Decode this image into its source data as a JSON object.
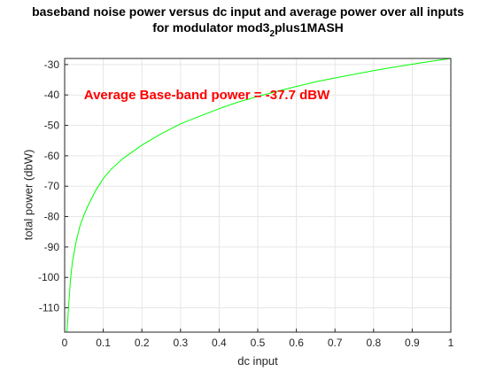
{
  "chart_data": {
    "type": "line",
    "title_main": "baseband noise power versus dc input and average power over all inputs",
    "title_line2_prefix": "for modulator mod3",
    "title_line2_subscript": "2",
    "title_line2_suffix": "plus1MASH",
    "xlabel": "dc input",
    "ylabel": "total power (dbW)",
    "xlim": [
      0,
      1
    ],
    "ylim": [
      -118,
      -28
    ],
    "xticks": [
      0,
      0.1,
      0.2,
      0.3,
      0.4,
      0.5,
      0.6,
      0.7,
      0.8,
      0.9,
      1
    ],
    "xtick_labels": [
      "0",
      "0.1",
      "0.2",
      "0.3",
      "0.4",
      "0.5",
      "0.6",
      "0.7",
      "0.8",
      "0.9",
      "1"
    ],
    "yticks": [
      -110,
      -100,
      -90,
      -80,
      -70,
      -60,
      -50,
      -40,
      -30
    ],
    "ytick_labels": [
      "-110",
      "-100",
      "-90",
      "-80",
      "-70",
      "-60",
      "-50",
      "-40",
      "-30"
    ],
    "grid": true,
    "series": [
      {
        "color": "#00ff00",
        "x": [
          0.006,
          0.01,
          0.015,
          0.02,
          0.03,
          0.04,
          0.05,
          0.06,
          0.08,
          0.1,
          0.12,
          0.15,
          0.2,
          0.25,
          0.3,
          0.35,
          0.4,
          0.45,
          0.5,
          0.55,
          0.6,
          0.65,
          0.7,
          0.75,
          0.8,
          0.85,
          0.9,
          0.95,
          1.0
        ],
        "y": [
          -118,
          -110,
          -101,
          -95,
          -88,
          -83,
          -79.5,
          -76.5,
          -71.5,
          -67.5,
          -64.5,
          -61,
          -56.5,
          -52.8,
          -49.5,
          -47,
          -44.5,
          -42.3,
          -40.5,
          -38.8,
          -37.2,
          -35.7,
          -34.4,
          -33.2,
          -32.0,
          -30.9,
          -29.9,
          -28.9,
          -28.0
        ]
      }
    ],
    "annotation": {
      "text": "Average Base-band power = -37.7 dBW",
      "color": "#ff0000",
      "x": 0.05,
      "y": -40
    }
  }
}
